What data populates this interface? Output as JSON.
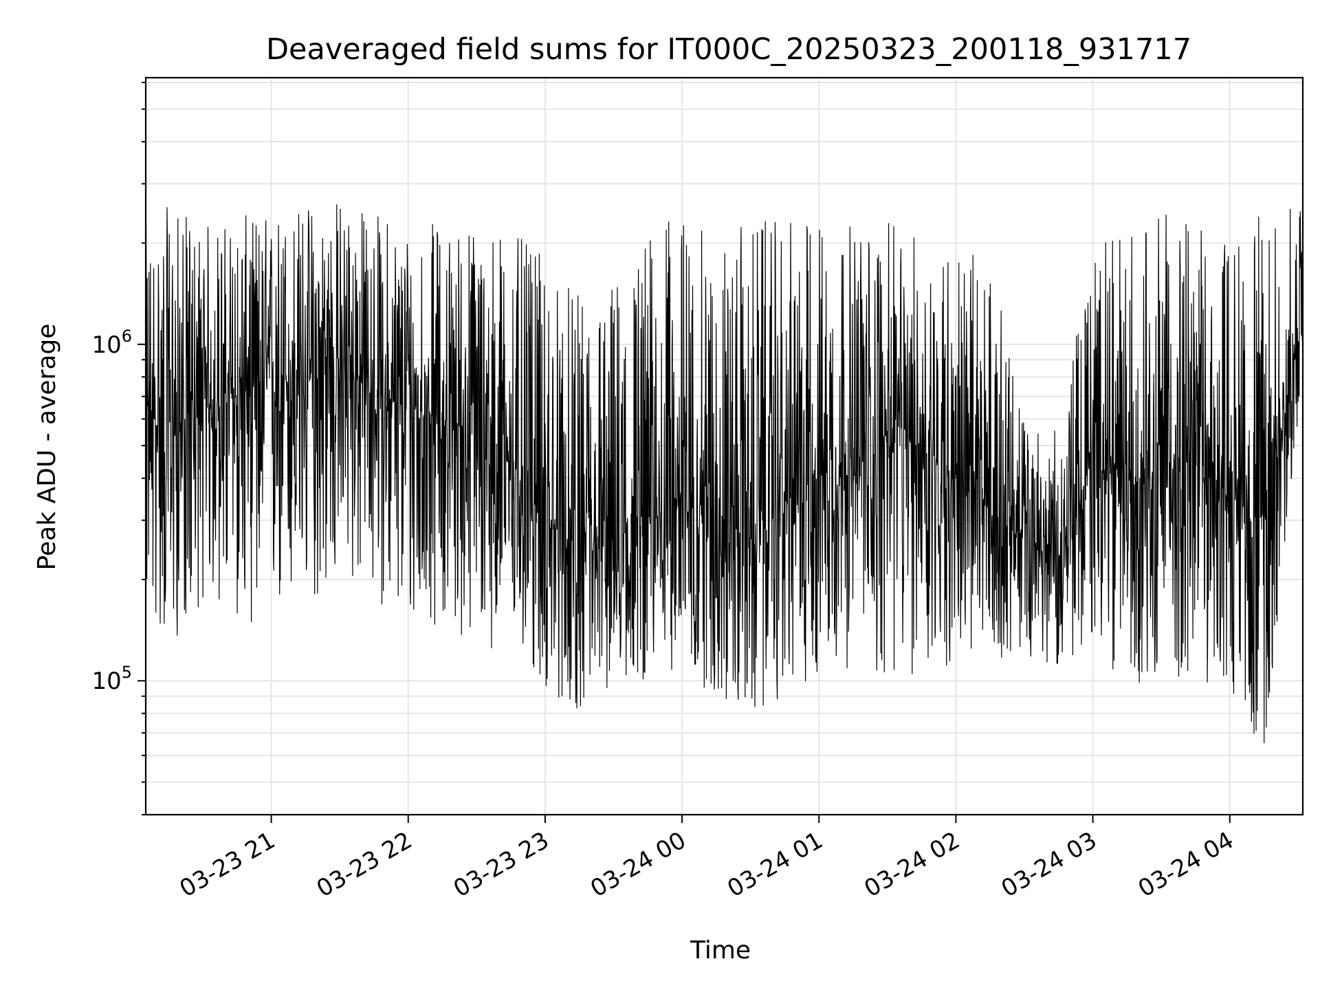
{
  "chart_data": {
    "type": "line",
    "title": "Deaveraged field sums for IT000C_20250323_200118_931717",
    "xlabel": "Time",
    "ylabel": "Peak ADU - average",
    "y_scale": "log",
    "ylim": [
      40000,
      6200000
    ],
    "xlim": [
      "2025-03-23 20:05",
      "2025-03-24 04:32"
    ],
    "grid": true,
    "legend": "none",
    "line_color": "#000000",
    "x_ticks": [
      {
        "value": "2025-03-23 21:00",
        "label": "03-23 21"
      },
      {
        "value": "2025-03-23 22:00",
        "label": "03-23 22"
      },
      {
        "value": "2025-03-23 23:00",
        "label": "03-23 23"
      },
      {
        "value": "2025-03-24 00:00",
        "label": "03-24 00"
      },
      {
        "value": "2025-03-24 01:00",
        "label": "03-24 01"
      },
      {
        "value": "2025-03-24 02:00",
        "label": "03-24 02"
      },
      {
        "value": "2025-03-24 03:00",
        "label": "03-24 03"
      },
      {
        "value": "2025-03-24 04:00",
        "label": "03-24 04"
      }
    ],
    "y_ticks": [
      {
        "value": 100000,
        "base": "10",
        "exp": "5"
      },
      {
        "value": 1000000,
        "base": "10",
        "exp": "6"
      }
    ],
    "series": [
      {
        "x": [
          "2025-03-23 20:05",
          "2025-03-23 20:15",
          "2025-03-23 20:30",
          "2025-03-23 20:45",
          "2025-03-23 21:00",
          "2025-03-23 21:15",
          "2025-03-23 21:30",
          "2025-03-23 21:45",
          "2025-03-23 22:00",
          "2025-03-23 22:15",
          "2025-03-23 22:30",
          "2025-03-23 22:45",
          "2025-03-23 23:00",
          "2025-03-23 23:15",
          "2025-03-23 23:30",
          "2025-03-23 23:45",
          "2025-03-24 00:00",
          "2025-03-24 00:15",
          "2025-03-24 00:30",
          "2025-03-24 00:45",
          "2025-03-24 01:00",
          "2025-03-24 01:15",
          "2025-03-24 01:30",
          "2025-03-24 01:45",
          "2025-03-24 02:00",
          "2025-03-24 02:15",
          "2025-03-24 02:30",
          "2025-03-24 02:45",
          "2025-03-24 03:00",
          "2025-03-24 03:15",
          "2025-03-24 03:30",
          "2025-03-24 03:45",
          "2025-03-24 04:00",
          "2025-03-24 04:15",
          "2025-03-24 04:32"
        ],
        "y": [
          600000,
          550000,
          650000,
          700000,
          800000,
          750000,
          900000,
          700000,
          650000,
          600000,
          550000,
          450000,
          300000,
          220000,
          250000,
          300000,
          350000,
          320000,
          260000,
          330000,
          450000,
          400000,
          550000,
          500000,
          400000,
          320000,
          260000,
          230000,
          450000,
          380000,
          420000,
          480000,
          350000,
          300000,
          1200000
        ]
      }
    ],
    "y_envelope_low": [
      160000,
      120000,
      170000,
      150000,
      140000,
      160000,
      190000,
      180000,
      130000,
      150000,
      120000,
      130000,
      90000,
      80000,
      95000,
      100000,
      110000,
      85000,
      75000,
      90000,
      100000,
      110000,
      95000,
      100000,
      110000,
      115000,
      120000,
      110000,
      120000,
      100000,
      95000,
      100000,
      90000,
      60000,
      800000
    ],
    "y_envelope_high": [
      2200000,
      2600000,
      2300000,
      2400000,
      2500000,
      2700000,
      2800000,
      2500000,
      2400000,
      2300000,
      2400000,
      2200000,
      1800000,
      1400000,
      1600000,
      2200000,
      2500000,
      2000000,
      2400000,
      2300000,
      2500000,
      2300000,
      2300000,
      2100000,
      2000000,
      1800000,
      600000,
      550000,
      2000000,
      2200000,
      2500000,
      2300000,
      2100000,
      2500000,
      2600000
    ]
  }
}
